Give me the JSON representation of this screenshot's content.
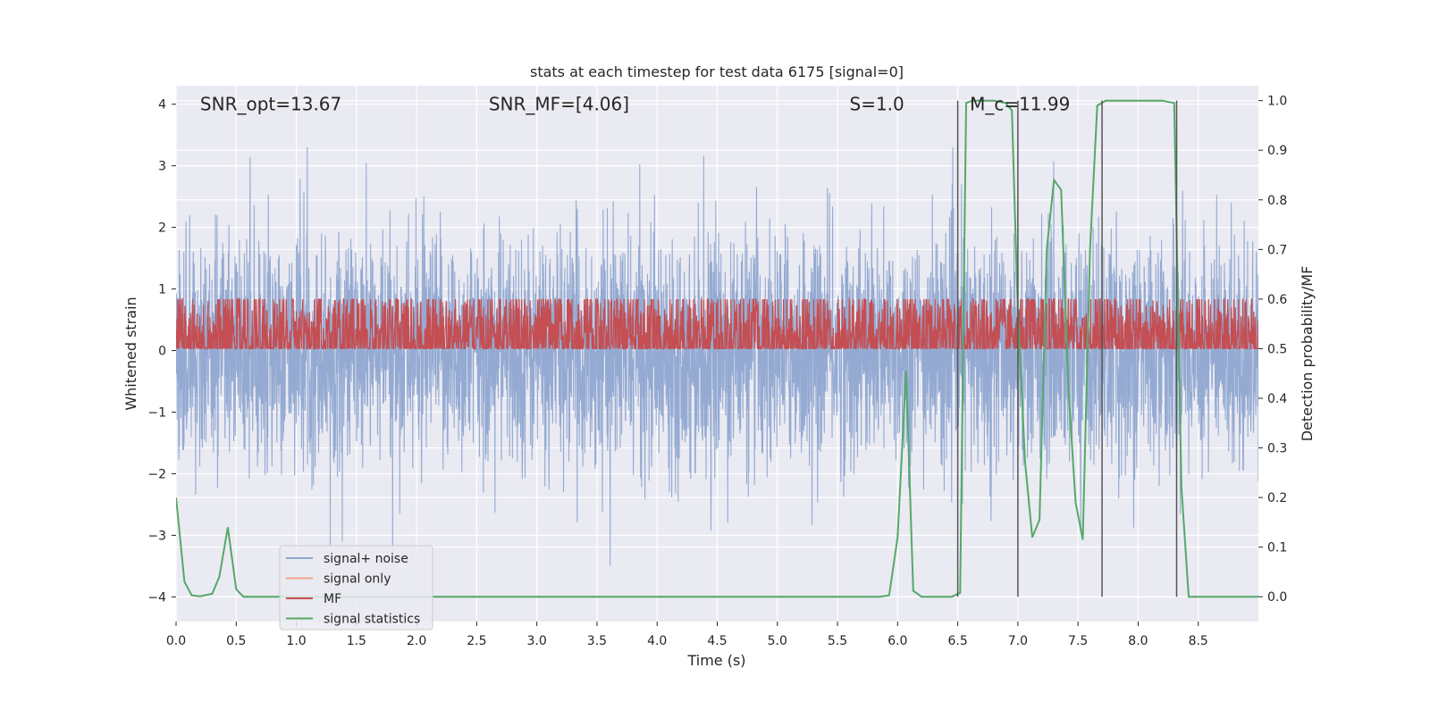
{
  "chart_data": {
    "type": "line",
    "title": "stats at each timestep for test data 6175 [signal=0]",
    "xlabel": "Time (s)",
    "ylabel_left": "Whitened strain",
    "ylabel_right": "Detection probability/MF",
    "xlim": [
      0,
      9.0
    ],
    "ylim_left": [
      -4.4,
      4.3
    ],
    "ylim_right": [
      -0.05,
      1.03
    ],
    "x_ticks": [
      0.0,
      0.5,
      1.0,
      1.5,
      2.0,
      2.5,
      3.0,
      3.5,
      4.0,
      4.5,
      5.0,
      5.5,
      6.0,
      6.5,
      7.0,
      7.5,
      8.0,
      8.5
    ],
    "x_tick_labels": [
      "0.0",
      "0.5",
      "1.0",
      "1.5",
      "2.0",
      "2.5",
      "3.0",
      "3.5",
      "4.0",
      "4.5",
      "5.0",
      "5.5",
      "6.0",
      "6.5",
      "7.0",
      "7.5",
      "8.0",
      "8.5"
    ],
    "y_ticks_left": [
      4,
      3,
      2,
      1,
      0,
      -1,
      -2,
      -3,
      -4
    ],
    "y_tick_labels_left": [
      "4",
      "3",
      "2",
      "1",
      "0",
      "−1",
      "−2",
      "−3",
      "−4"
    ],
    "y_ticks_right": [
      1.0,
      0.9,
      0.8,
      0.7,
      0.6,
      0.5,
      0.4,
      0.3,
      0.2,
      0.1,
      0.0
    ],
    "y_tick_labels_right": [
      "1.0",
      "0.9",
      "0.8",
      "0.7",
      "0.6",
      "0.5",
      "0.4",
      "0.3",
      "0.2",
      "0.1",
      "0.0"
    ],
    "grid": true,
    "legend_position": "lower-left",
    "annotations": [
      {
        "text": "SNR_opt=13.67",
        "x": 0.2
      },
      {
        "text": "SNR_MF=[4.06]",
        "x": 2.6
      },
      {
        "text": "S=1.0",
        "x": 5.6
      },
      {
        "text": "M_c=11.99",
        "x": 6.6
      }
    ],
    "annotation_y": 4.0,
    "vertical_markers": [
      6.5,
      7.0,
      7.7,
      8.32
    ],
    "series": [
      {
        "name": "signal+ noise",
        "color": "#8fa7d0",
        "kind": "noise",
        "amplitude_typical": 1.5,
        "amplitude_peak": 3.3
      },
      {
        "name": "signal only",
        "color": "#f0a58a",
        "kind": "none"
      },
      {
        "name": "MF",
        "color": "#c44e52",
        "kind": "mf",
        "baseline": 0.52,
        "amplitude_typical": 0.06,
        "amplitude_peak": 0.6
      },
      {
        "name": "signal statistics",
        "color": "#55a868",
        "kind": "line",
        "x": [
          0.0,
          0.07,
          0.13,
          0.2,
          0.3,
          0.36,
          0.43,
          0.5,
          0.56,
          0.63,
          0.7,
          5.85,
          5.93,
          6.0,
          6.07,
          6.13,
          6.2,
          6.3,
          6.45,
          6.52,
          6.57,
          6.62,
          6.7,
          6.8,
          6.9,
          6.95,
          7.0,
          7.06,
          7.12,
          7.18,
          7.24,
          7.3,
          7.36,
          7.42,
          7.48,
          7.54,
          7.6,
          7.66,
          7.73,
          7.8,
          7.9,
          8.0,
          8.2,
          8.3,
          8.36,
          8.42,
          8.5,
          8.6,
          9.0
        ],
        "y": [
          0.2,
          0.03,
          0.003,
          0.001,
          0.006,
          0.04,
          0.14,
          0.015,
          0.0,
          0.0,
          0.0,
          0.0,
          0.003,
          0.12,
          0.455,
          0.012,
          0.0,
          0.0,
          0.0,
          0.008,
          0.995,
          1.0,
          1.0,
          1.0,
          0.995,
          0.98,
          0.57,
          0.27,
          0.12,
          0.155,
          0.7,
          0.84,
          0.82,
          0.42,
          0.19,
          0.115,
          0.7,
          0.99,
          1.0,
          1.0,
          1.0,
          1.0,
          1.0,
          0.995,
          0.22,
          0.0,
          0.0,
          0.0,
          0.0
        ]
      }
    ]
  }
}
